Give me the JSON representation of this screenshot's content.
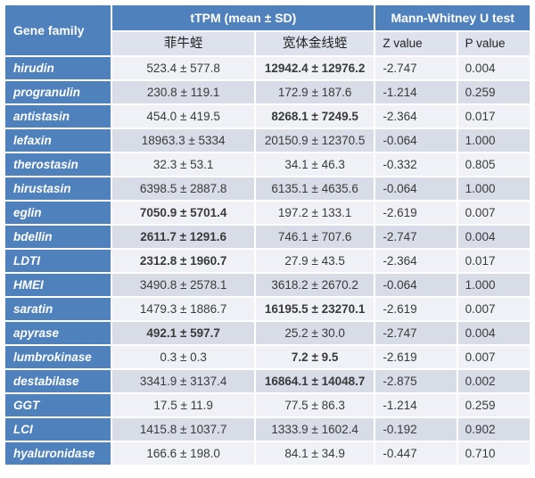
{
  "table": {
    "header": {
      "gene_family": "Gene family",
      "ttpm_group": "tTPM (mean ± SD)",
      "mw_group": "Mann-Whitney U test",
      "col_species_1": "菲牛蛭",
      "col_species_2": "宽体金线蛭",
      "col_z": "Z value",
      "col_p": "P value"
    }
  },
  "colors": {
    "header_blue": "#4f81bd",
    "subheader_bg": "#dee2ec",
    "row_light": "#eff1f6",
    "row_stripe": "#d8dce7",
    "highlight_red": "#fe0000",
    "highlight_blue": "#0070c0",
    "gridline": "#ffffff"
  },
  "chart_data": {
    "type": "table",
    "column_groups": [
      "Gene family",
      "tTPM (mean ± SD)",
      "Mann-Whitney U test"
    ],
    "columns": [
      "Gene family",
      "菲牛蛭",
      "宽体金线蛭",
      "Z value",
      "P value"
    ],
    "highlight_note": "fn_hl/kt_hl: red = bold red value, blue = bold blue value, normal = plain",
    "rows": [
      {
        "gene": "hirudin",
        "fn": "523.4 ± 577.8",
        "fn_hl": "normal",
        "kt": "12942.4 ± 12976.2",
        "kt_hl": "red",
        "z": "-2.747",
        "p": "0.004"
      },
      {
        "gene": "progranulin",
        "fn": "230.8 ± 119.1",
        "fn_hl": "normal",
        "kt": "172.9 ± 187.6",
        "kt_hl": "normal",
        "z": "-1.214",
        "p": "0.259"
      },
      {
        "gene": "antistasin",
        "fn": "454.0 ± 419.5",
        "fn_hl": "normal",
        "kt": "8268.1 ± 7249.5",
        "kt_hl": "red",
        "z": "-2.364",
        "p": "0.017"
      },
      {
        "gene": "lefaxin",
        "fn": "18963.3 ± 5334",
        "fn_hl": "normal",
        "kt": "20150.9 ± 12370.5",
        "kt_hl": "normal",
        "z": "-0.064",
        "p": "1.000"
      },
      {
        "gene": "therostasin",
        "fn": "32.3 ± 53.1",
        "fn_hl": "normal",
        "kt": "34.1 ± 46.3",
        "kt_hl": "normal",
        "z": "-0.332",
        "p": "0.805"
      },
      {
        "gene": "hirustasin",
        "fn": "6398.5 ± 2887.8",
        "fn_hl": "normal",
        "kt": "6135.1 ± 4635.6",
        "kt_hl": "normal",
        "z": "-0.064",
        "p": "1.000"
      },
      {
        "gene": "eglin",
        "fn": "7050.9 ± 5701.4",
        "fn_hl": "blue",
        "kt": "197.2 ± 133.1",
        "kt_hl": "normal",
        "z": "-2.619",
        "p": "0.007"
      },
      {
        "gene": "bdellin",
        "fn": "2611.7 ± 1291.6",
        "fn_hl": "blue",
        "kt": "746.1 ± 707.6",
        "kt_hl": "normal",
        "z": "-2.747",
        "p": "0.004"
      },
      {
        "gene": "LDTI",
        "fn": "2312.8 ± 1960.7",
        "fn_hl": "blue",
        "kt": "27.9 ± 43.5",
        "kt_hl": "normal",
        "z": "-2.364",
        "p": "0.017"
      },
      {
        "gene": "HMEI",
        "fn": "3490.8 ± 2578.1",
        "fn_hl": "normal",
        "kt": "3618.2 ± 2670.2",
        "kt_hl": "normal",
        "z": "-0.064",
        "p": "1.000"
      },
      {
        "gene": "saratin",
        "fn": "1479.3 ± 1886.7",
        "fn_hl": "normal",
        "kt": "16195.5 ± 23270.1",
        "kt_hl": "red",
        "z": "-2.619",
        "p": "0.007"
      },
      {
        "gene": "apyrase",
        "fn": "492.1 ± 597.7",
        "fn_hl": "blue",
        "kt": "25.2 ± 30.0",
        "kt_hl": "normal",
        "z": "-2.747",
        "p": "0.004"
      },
      {
        "gene": "lumbrokinase",
        "fn": "0.3 ± 0.3",
        "fn_hl": "normal",
        "kt": "7.2 ± 9.5",
        "kt_hl": "red",
        "z": "-2.619",
        "p": "0.007"
      },
      {
        "gene": "destabilase",
        "fn": "3341.9 ± 3137.4",
        "fn_hl": "normal",
        "kt": "16864.1 ± 14048.7",
        "kt_hl": "red",
        "z": "-2.875",
        "p": "0.002"
      },
      {
        "gene": "GGT",
        "fn": "17.5 ± 11.9",
        "fn_hl": "normal",
        "kt": "77.5 ± 86.3",
        "kt_hl": "normal",
        "z": "-1.214",
        "p": "0.259"
      },
      {
        "gene": "LCI",
        "fn": "1415.8 ± 1037.7",
        "fn_hl": "normal",
        "kt": "1333.9 ± 1602.4",
        "kt_hl": "normal",
        "z": "-0.192",
        "p": "0.902"
      },
      {
        "gene": "hyaluronidase",
        "fn": "166.6 ± 198.0",
        "fn_hl": "normal",
        "kt": "84.1 ± 34.9",
        "kt_hl": "normal",
        "z": "-0.447",
        "p": "0.710"
      }
    ]
  }
}
